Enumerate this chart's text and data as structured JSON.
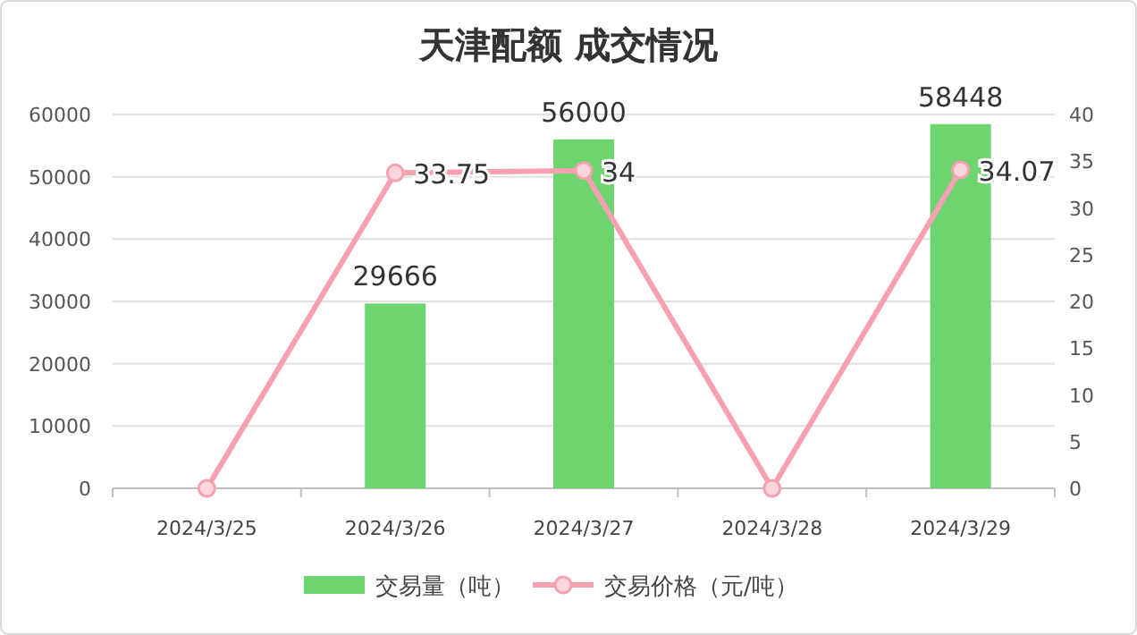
{
  "chart_data": {
    "type": "bar",
    "title": "天津配额 成交情况",
    "categories": [
      "2024/3/25",
      "2024/3/26",
      "2024/3/27",
      "2024/3/28",
      "2024/3/29"
    ],
    "series": [
      {
        "name": "交易量（吨）",
        "color": "#6dd46f",
        "values": [
          0,
          29666,
          56000,
          0,
          58448
        ],
        "value_labels": [
          null,
          "29666",
          "56000",
          null,
          "58448"
        ]
      },
      {
        "name": "交易价格（元/吨）",
        "type": "line",
        "axis": "y2",
        "color": "#f7a1b0",
        "marker": "circle",
        "values": [
          0,
          33.75,
          34,
          0,
          34.07
        ],
        "value_labels": [
          null,
          "33.75",
          "34",
          null,
          "34.07"
        ]
      }
    ],
    "ylim": [
      0,
      60000
    ],
    "yticks": [
      0,
      10000,
      20000,
      30000,
      40000,
      50000,
      60000
    ],
    "y2lim": [
      0,
      40
    ],
    "y2ticks": [
      0,
      5,
      10,
      15,
      20,
      25,
      30,
      35,
      40
    ],
    "grid": "y",
    "legend": "bottom"
  }
}
